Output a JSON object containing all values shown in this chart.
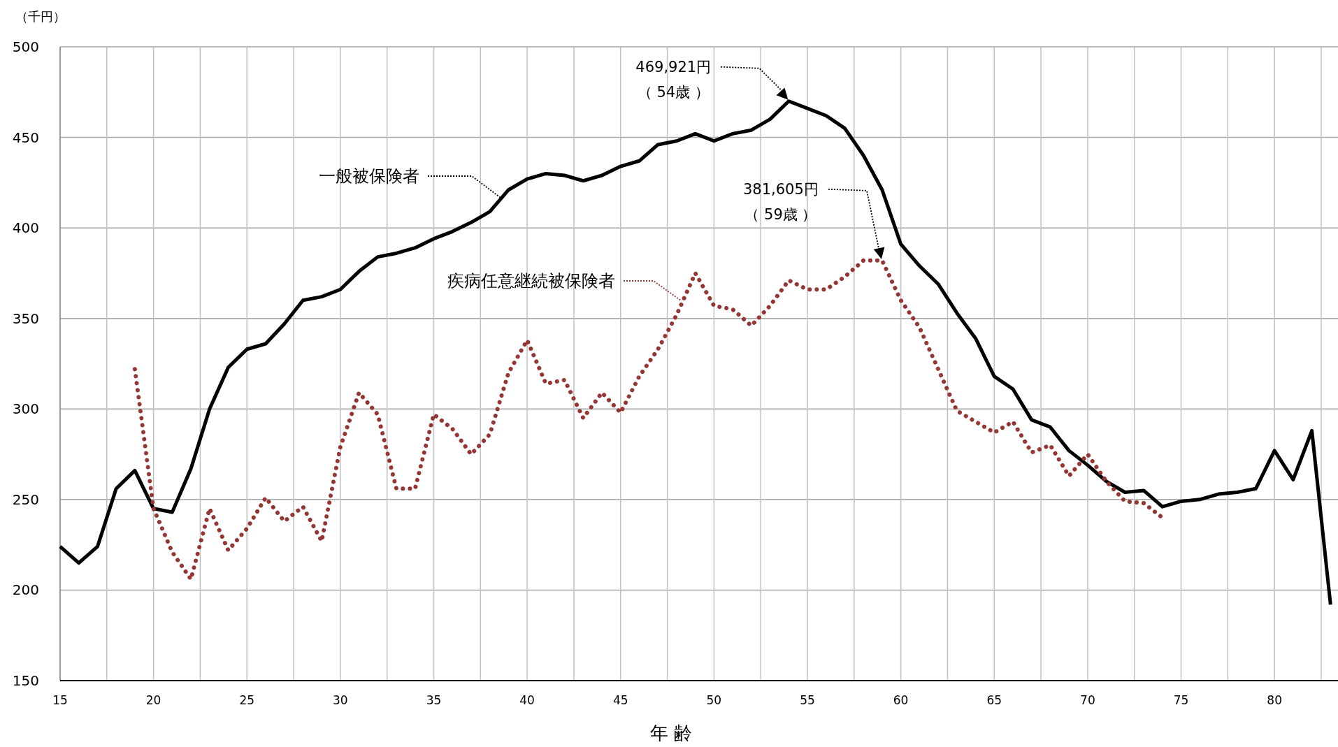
{
  "chart_data": {
    "type": "line",
    "xlabel": "年 齢",
    "ylabel": "（千円）",
    "xlim": [
      15,
      83.4
    ],
    "ylim": [
      150,
      500
    ],
    "xticks": [
      15,
      {
        "value": 17.5,
        "label": null
      },
      20,
      {
        "value": 22.5,
        "label": null
      },
      25,
      {
        "value": 27.5,
        "label": null
      },
      30,
      {
        "value": 32.5,
        "label": null
      },
      35,
      {
        "value": 37.5,
        "label": null
      },
      40,
      {
        "value": 42.5,
        "label": null
      },
      45,
      {
        "value": 47.5,
        "label": null
      },
      50,
      {
        "value": 52.5,
        "label": null
      },
      55,
      {
        "value": 57.5,
        "label": null
      },
      60,
      {
        "value": 62.5,
        "label": null
      },
      65,
      {
        "value": 67.5,
        "label": null
      },
      70,
      {
        "value": 72.5,
        "label": null
      },
      75,
      {
        "value": 77.5,
        "label": null
      },
      80,
      {
        "value": 82.5,
        "label": null
      }
    ],
    "yticks": [
      150,
      200,
      250,
      300,
      350,
      400,
      450,
      500
    ],
    "grid": true,
    "legend": "left",
    "marker": "none",
    "series": [
      {
        "name": "一般被保険者",
        "color": "#000000",
        "line_style": "solid",
        "x": [
          15,
          16,
          17,
          18,
          19,
          20,
          21,
          22,
          23,
          24,
          25,
          26,
          27,
          28,
          29,
          30,
          31,
          32,
          33,
          34,
          35,
          36,
          37,
          38,
          39,
          40,
          41,
          42,
          43,
          44,
          45,
          46,
          47,
          48,
          49,
          50,
          51,
          52,
          53,
          54,
          55,
          56,
          57,
          58,
          59,
          60,
          61,
          62,
          63,
          64,
          65,
          66,
          67,
          68,
          69,
          70,
          71,
          72,
          73,
          74,
          75,
          76,
          77,
          78,
          79,
          80,
          81,
          82,
          83
        ],
        "values": [
          224,
          215,
          224,
          256,
          266,
          245,
          243,
          267,
          300,
          323,
          333,
          336,
          347,
          360,
          362,
          366,
          376,
          384,
          386,
          389,
          394,
          398,
          403,
          409,
          421,
          427,
          430,
          429,
          426,
          429,
          434,
          437,
          446,
          448,
          452,
          448,
          452,
          454,
          460,
          470,
          466,
          462,
          455,
          440,
          421,
          391,
          379,
          369,
          353,
          339,
          318,
          311,
          294,
          290,
          277,
          269,
          260,
          254,
          255,
          246,
          249,
          250,
          253,
          254,
          256,
          277,
          261,
          288,
          192
        ]
      },
      {
        "name": "疾病任意継続被保険者",
        "color": "#943634",
        "line_style": "dotted",
        "x": [
          19,
          20,
          21,
          22,
          23,
          24,
          25,
          26,
          27,
          28,
          29,
          30,
          31,
          32,
          33,
          34,
          35,
          36,
          37,
          38,
          39,
          40,
          41,
          42,
          43,
          44,
          45,
          46,
          47,
          48,
          49,
          50,
          51,
          52,
          53,
          54,
          55,
          56,
          57,
          58,
          59,
          60,
          61,
          62,
          63,
          64,
          65,
          66,
          67,
          68,
          69,
          70,
          71,
          72,
          73,
          74
        ],
        "values": [
          322,
          245,
          221,
          206,
          245,
          222,
          234,
          251,
          238,
          246,
          227,
          279,
          309,
          297,
          256,
          256,
          297,
          289,
          275,
          286,
          320,
          338,
          314,
          316,
          295,
          309,
          298,
          318,
          333,
          352,
          375,
          357,
          355,
          346,
          357,
          371,
          366,
          366,
          373,
          382,
          382,
          360,
          345,
          322,
          299,
          293,
          287,
          293,
          276,
          280,
          263,
          275,
          260,
          249,
          248,
          240
        ]
      }
    ],
    "annotations": [
      {
        "text": "469,921円（ 54歳 ）",
        "x": 54,
        "y": 470
      },
      {
        "text": "381,605円（ 59歳 ）",
        "x": 59,
        "y": 382
      }
    ]
  }
}
